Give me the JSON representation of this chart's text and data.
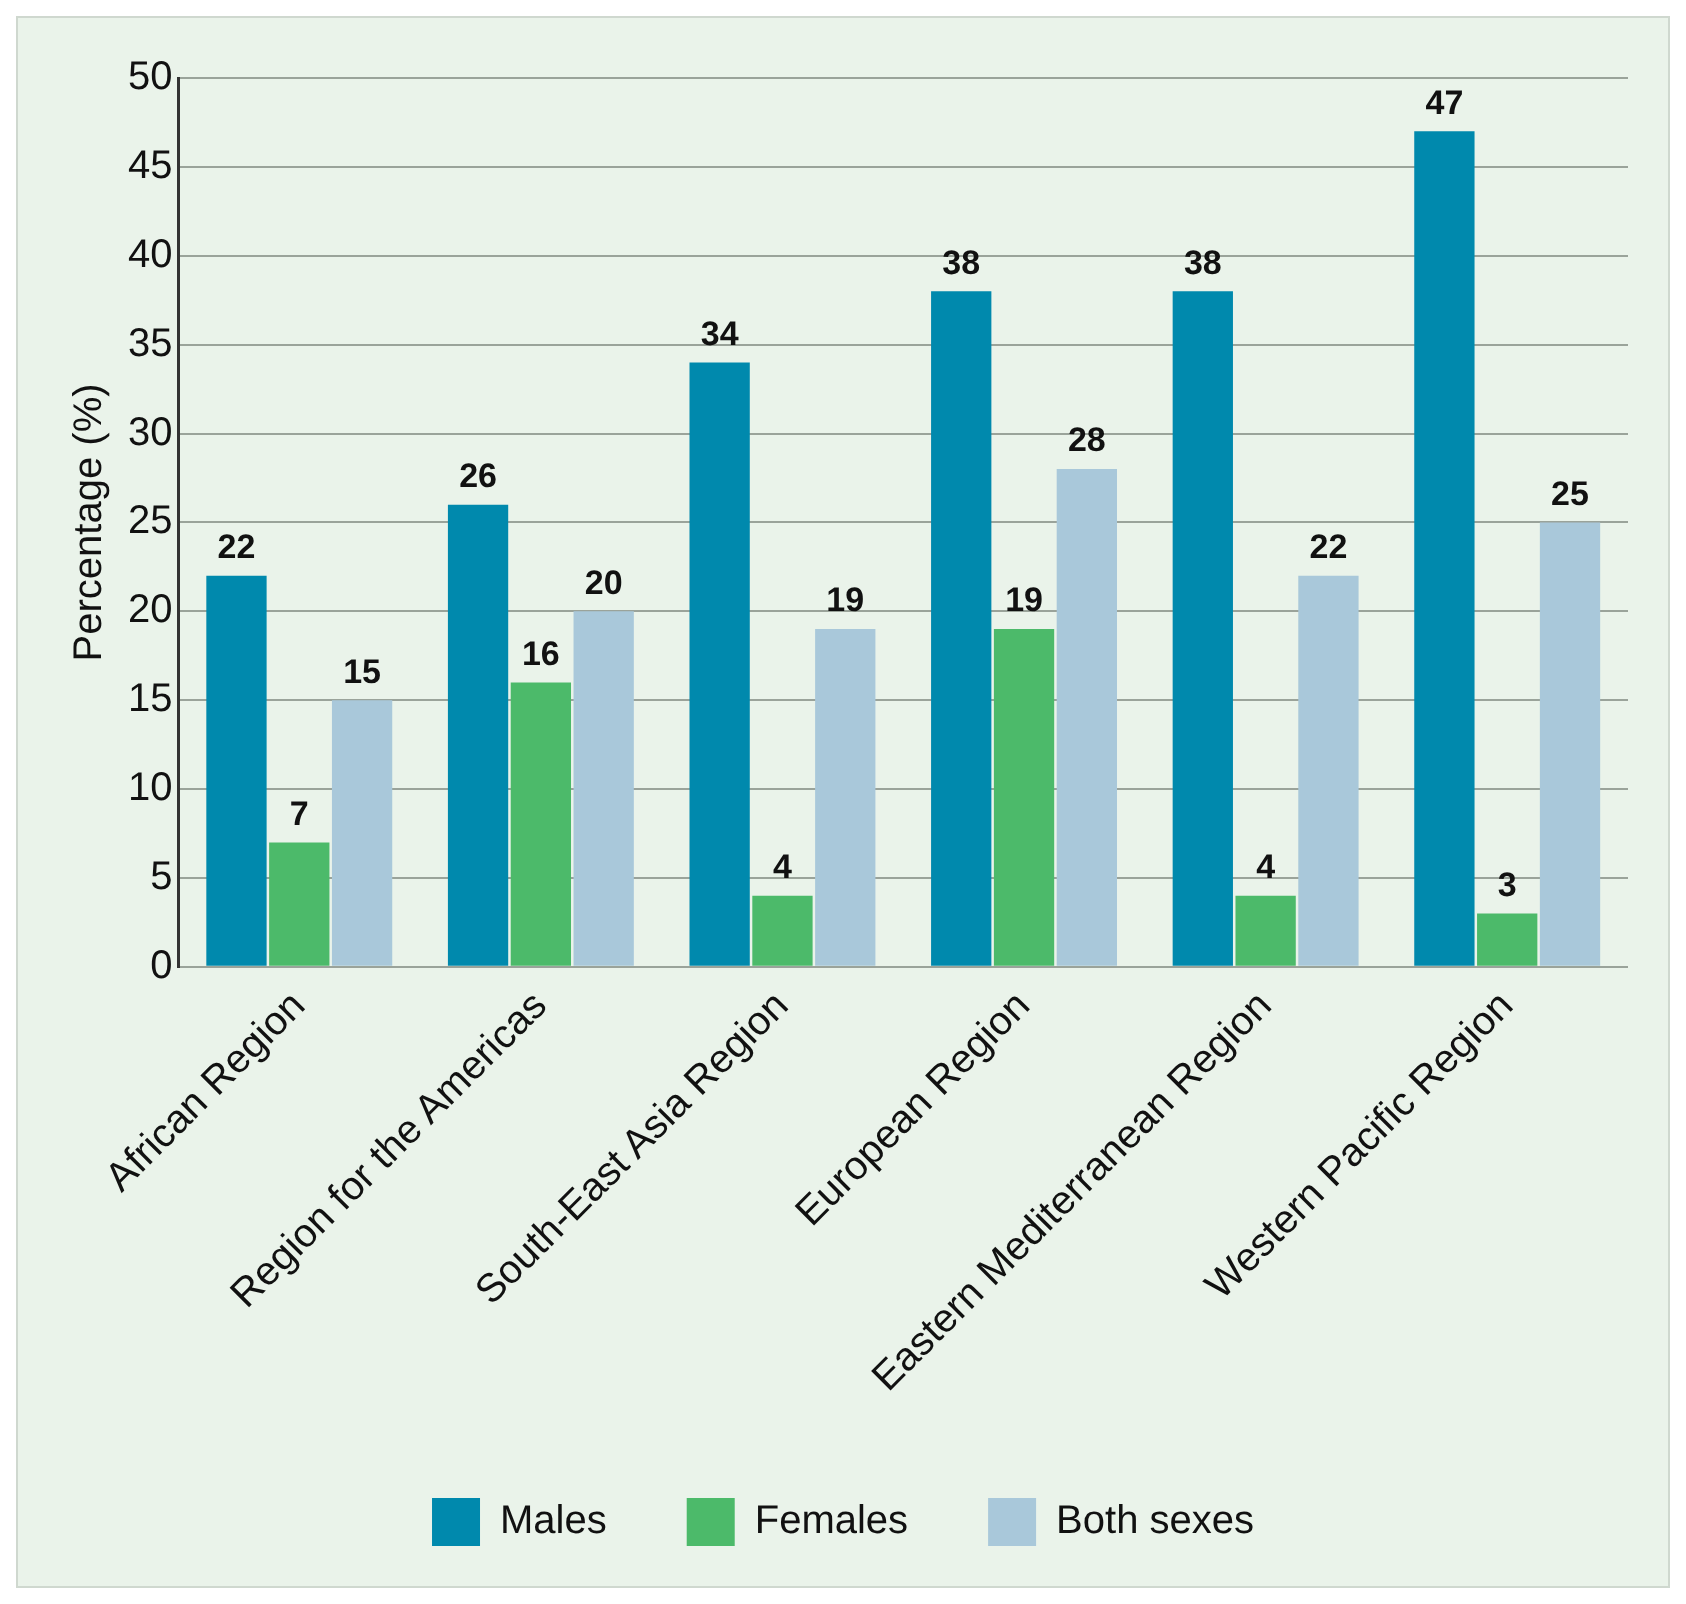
{
  "chart_data": {
    "type": "bar",
    "ylabel": "Percentage (%)",
    "categories": [
      "African Region",
      "Region for the Americas",
      "South-East Asia Region",
      "European Region",
      "Eastern Mediterranean Region",
      "Western Pacific Region"
    ],
    "series": [
      {
        "name": "Males",
        "color": "#0089ad",
        "values": [
          22,
          26,
          34,
          38,
          38,
          47
        ]
      },
      {
        "name": "Females",
        "color": "#4cba6a",
        "values": [
          7,
          16,
          4,
          19,
          4,
          3
        ]
      },
      {
        "name": "Both sexes",
        "color": "#a9c8da",
        "values": [
          15,
          20,
          19,
          28,
          22,
          25
        ]
      }
    ],
    "ylim": [
      0,
      50
    ],
    "yticks": [
      0,
      5,
      10,
      15,
      20,
      25,
      30,
      35,
      40,
      45,
      50
    ],
    "grid": "y",
    "legend": "bottom",
    "data_labels": true
  }
}
